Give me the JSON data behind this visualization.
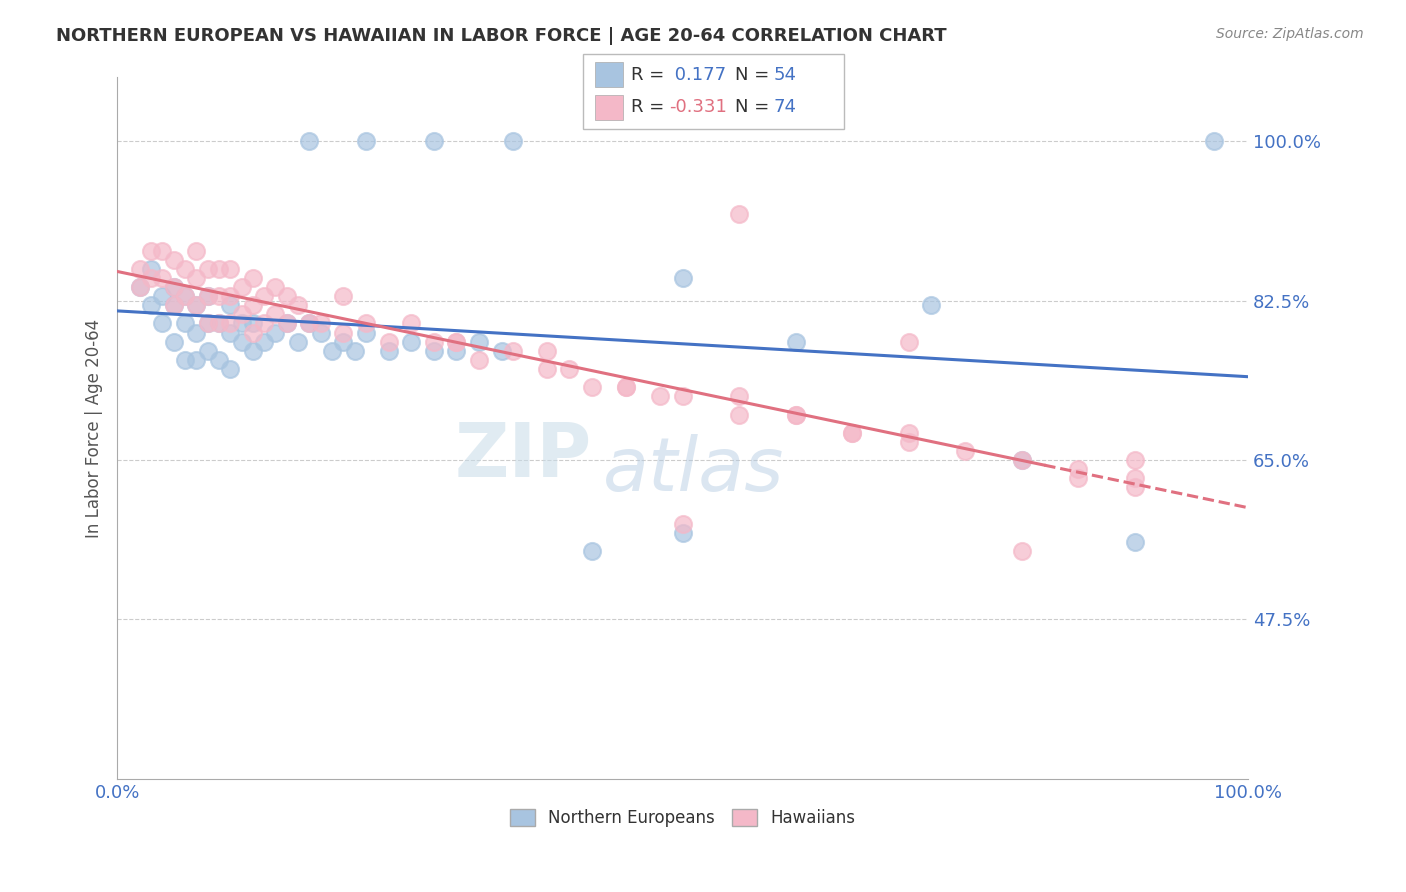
{
  "title": "NORTHERN EUROPEAN VS HAWAIIAN IN LABOR FORCE | AGE 20-64 CORRELATION CHART",
  "source": "Source: ZipAtlas.com",
  "ylabel": "In Labor Force | Age 20-64",
  "xlim": [
    0.0,
    1.0
  ],
  "ylim": [
    0.3,
    1.07
  ],
  "yticks": [
    0.475,
    0.65,
    0.825,
    1.0
  ],
  "ytick_labels": [
    "47.5%",
    "65.0%",
    "82.5%",
    "100.0%"
  ],
  "xtick_labels": [
    "0.0%",
    "100.0%"
  ],
  "blue_R": 0.177,
  "blue_N": 54,
  "pink_R": -0.331,
  "pink_N": 74,
  "blue_color": "#a8c4e0",
  "pink_color": "#f4b8c8",
  "blue_line_color": "#4472c4",
  "pink_line_color": "#e07080",
  "legend_label_blue": "Northern Europeans",
  "legend_label_pink": "Hawaiians",
  "watermark_zip": "ZIP",
  "watermark_atlas": "atlas",
  "blue_x": [
    0.02,
    0.03,
    0.03,
    0.04,
    0.04,
    0.05,
    0.05,
    0.05,
    0.06,
    0.06,
    0.06,
    0.07,
    0.07,
    0.07,
    0.08,
    0.08,
    0.08,
    0.09,
    0.09,
    0.1,
    0.1,
    0.1,
    0.11,
    0.11,
    0.12,
    0.12,
    0.13,
    0.14,
    0.15,
    0.16,
    0.17,
    0.18,
    0.19,
    0.2,
    0.21,
    0.22,
    0.24,
    0.26,
    0.28,
    0.3,
    0.32,
    0.34,
    0.17,
    0.22,
    0.28,
    0.35,
    0.42,
    0.5,
    0.6,
    0.72,
    0.8,
    0.9,
    0.5,
    0.97
  ],
  "blue_y": [
    0.84,
    0.82,
    0.86,
    0.83,
    0.8,
    0.82,
    0.84,
    0.78,
    0.8,
    0.76,
    0.83,
    0.79,
    0.82,
    0.76,
    0.8,
    0.83,
    0.77,
    0.8,
    0.76,
    0.79,
    0.82,
    0.75,
    0.78,
    0.8,
    0.77,
    0.8,
    0.78,
    0.79,
    0.8,
    0.78,
    0.8,
    0.79,
    0.77,
    0.78,
    0.77,
    0.79,
    0.77,
    0.78,
    0.77,
    0.77,
    0.78,
    0.77,
    1.0,
    1.0,
    1.0,
    1.0,
    0.55,
    0.57,
    0.78,
    0.82,
    0.65,
    0.56,
    0.85,
    1.0
  ],
  "pink_x": [
    0.02,
    0.02,
    0.03,
    0.03,
    0.04,
    0.04,
    0.05,
    0.05,
    0.05,
    0.06,
    0.06,
    0.07,
    0.07,
    0.07,
    0.08,
    0.08,
    0.08,
    0.09,
    0.09,
    0.09,
    0.1,
    0.1,
    0.1,
    0.11,
    0.11,
    0.12,
    0.12,
    0.12,
    0.13,
    0.13,
    0.14,
    0.14,
    0.15,
    0.15,
    0.16,
    0.17,
    0.18,
    0.2,
    0.22,
    0.24,
    0.26,
    0.28,
    0.3,
    0.32,
    0.35,
    0.38,
    0.4,
    0.42,
    0.45,
    0.48,
    0.5,
    0.55,
    0.6,
    0.65,
    0.7,
    0.75,
    0.8,
    0.85,
    0.9,
    0.55,
    0.7,
    0.2,
    0.3,
    0.38,
    0.45,
    0.55,
    0.6,
    0.65,
    0.7,
    0.8,
    0.85,
    0.9,
    0.9,
    0.5
  ],
  "pink_y": [
    0.86,
    0.84,
    0.88,
    0.85,
    0.88,
    0.85,
    0.87,
    0.84,
    0.82,
    0.86,
    0.83,
    0.88,
    0.85,
    0.82,
    0.86,
    0.83,
    0.8,
    0.86,
    0.83,
    0.8,
    0.86,
    0.83,
    0.8,
    0.84,
    0.81,
    0.85,
    0.82,
    0.79,
    0.83,
    0.8,
    0.84,
    0.81,
    0.83,
    0.8,
    0.82,
    0.8,
    0.8,
    0.79,
    0.8,
    0.78,
    0.8,
    0.78,
    0.78,
    0.76,
    0.77,
    0.75,
    0.75,
    0.73,
    0.73,
    0.72,
    0.72,
    0.7,
    0.7,
    0.68,
    0.67,
    0.66,
    0.55,
    0.63,
    0.62,
    0.92,
    0.78,
    0.83,
    0.78,
    0.77,
    0.73,
    0.72,
    0.7,
    0.68,
    0.68,
    0.65,
    0.64,
    0.63,
    0.65,
    0.58
  ]
}
